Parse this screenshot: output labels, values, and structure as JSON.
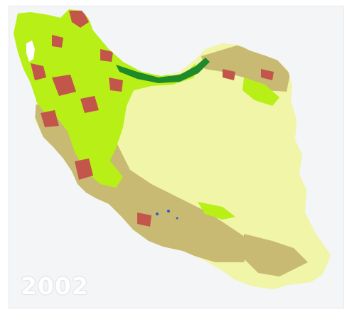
{
  "map": {
    "year_label": "2002",
    "colors": {
      "background": "#f4f5f7",
      "barren_desert": "#f0f5a8",
      "grassland_green": "#b8ef17",
      "shrubland_tan": "#c8ba73",
      "cropland_red": "#c2564a",
      "forest_dark_green": "#1f8a2a",
      "water_lake": "#ffffff",
      "wetland_blue": "#2b5cc7"
    }
  }
}
